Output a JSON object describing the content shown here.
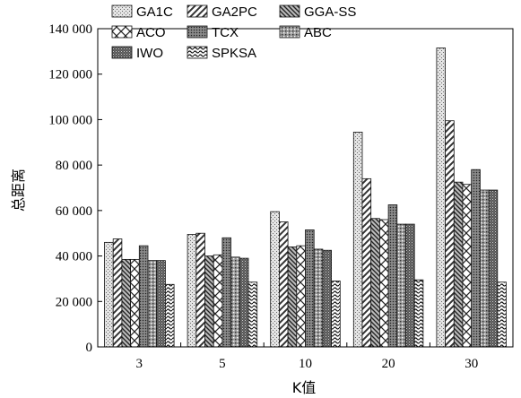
{
  "chart_data": {
    "type": "bar",
    "title": "",
    "xlabel": "K值",
    "ylabel": "总距离",
    "ylim": [
      0,
      140000
    ],
    "yticks": [
      0,
      20000,
      40000,
      60000,
      80000,
      100000,
      120000,
      140000
    ],
    "ytick_labels": [
      "0",
      "20 000",
      "40 000",
      "60 000",
      "80 000",
      "100 000",
      "120 000",
      "140 000"
    ],
    "categories": [
      "3",
      "5",
      "10",
      "20",
      "30"
    ],
    "legend_position": "top-right",
    "series": [
      {
        "name": "GA1C",
        "values": [
          46000,
          49500,
          59500,
          94500,
          131500
        ],
        "pattern": "dots-light"
      },
      {
        "name": "GA2PC",
        "values": [
          47500,
          50000,
          55000,
          74000,
          99500
        ],
        "pattern": "diag-fwd"
      },
      {
        "name": "GGA-SS",
        "values": [
          38500,
          40000,
          44000,
          56500,
          72500
        ],
        "pattern": "diag-back-dense"
      },
      {
        "name": "ACO",
        "values": [
          38500,
          40500,
          44500,
          56000,
          71500
        ],
        "pattern": "crosshatch"
      },
      {
        "name": "TCX",
        "values": [
          44500,
          48000,
          51500,
          62500,
          78000
        ],
        "pattern": "dots-dark"
      },
      {
        "name": "ABC",
        "values": [
          38000,
          39500,
          43000,
          54000,
          69000
        ],
        "pattern": "dots-mixed"
      },
      {
        "name": "IWO",
        "values": [
          38000,
          39000,
          42500,
          54000,
          69000
        ],
        "pattern": "dots-dense"
      },
      {
        "name": "SPKSA",
        "values": [
          27500,
          28500,
          29000,
          29500,
          28500
        ],
        "pattern": "waves"
      }
    ]
  }
}
